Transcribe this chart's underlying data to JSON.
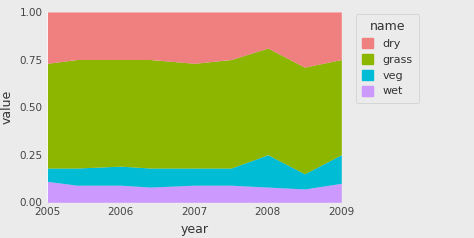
{
  "years": [
    2005,
    2005.4,
    2006,
    2006.4,
    2007,
    2007.5,
    2008,
    2008.5,
    2009
  ],
  "wet": [
    0.11,
    0.09,
    0.09,
    0.08,
    0.09,
    0.09,
    0.08,
    0.07,
    0.1
  ],
  "veg": [
    0.07,
    0.09,
    0.1,
    0.1,
    0.09,
    0.09,
    0.17,
    0.08,
    0.15
  ],
  "grass": [
    0.55,
    0.57,
    0.56,
    0.57,
    0.55,
    0.57,
    0.56,
    0.56,
    0.5
  ],
  "dry": [
    0.27,
    0.25,
    0.25,
    0.25,
    0.27,
    0.25,
    0.19,
    0.29,
    0.25
  ],
  "color_wet": "#CC99FF",
  "color_veg": "#00BCD4",
  "color_grass": "#8DB600",
  "color_dry": "#F08080",
  "bg_color": "#EBEBEB",
  "panel_bg": "#DCDCDC",
  "grid_color": "#FFFFFF",
  "title_legend": "name",
  "legend_labels": [
    "dry",
    "grass",
    "veg",
    "wet"
  ],
  "xlabel": "year",
  "ylabel": "value",
  "xlim": [
    2005,
    2009
  ],
  "ylim": [
    0.0,
    1.0
  ],
  "xticks": [
    2005,
    2006,
    2007,
    2008,
    2009
  ],
  "yticks": [
    0.0,
    0.25,
    0.5,
    0.75,
    1.0
  ]
}
